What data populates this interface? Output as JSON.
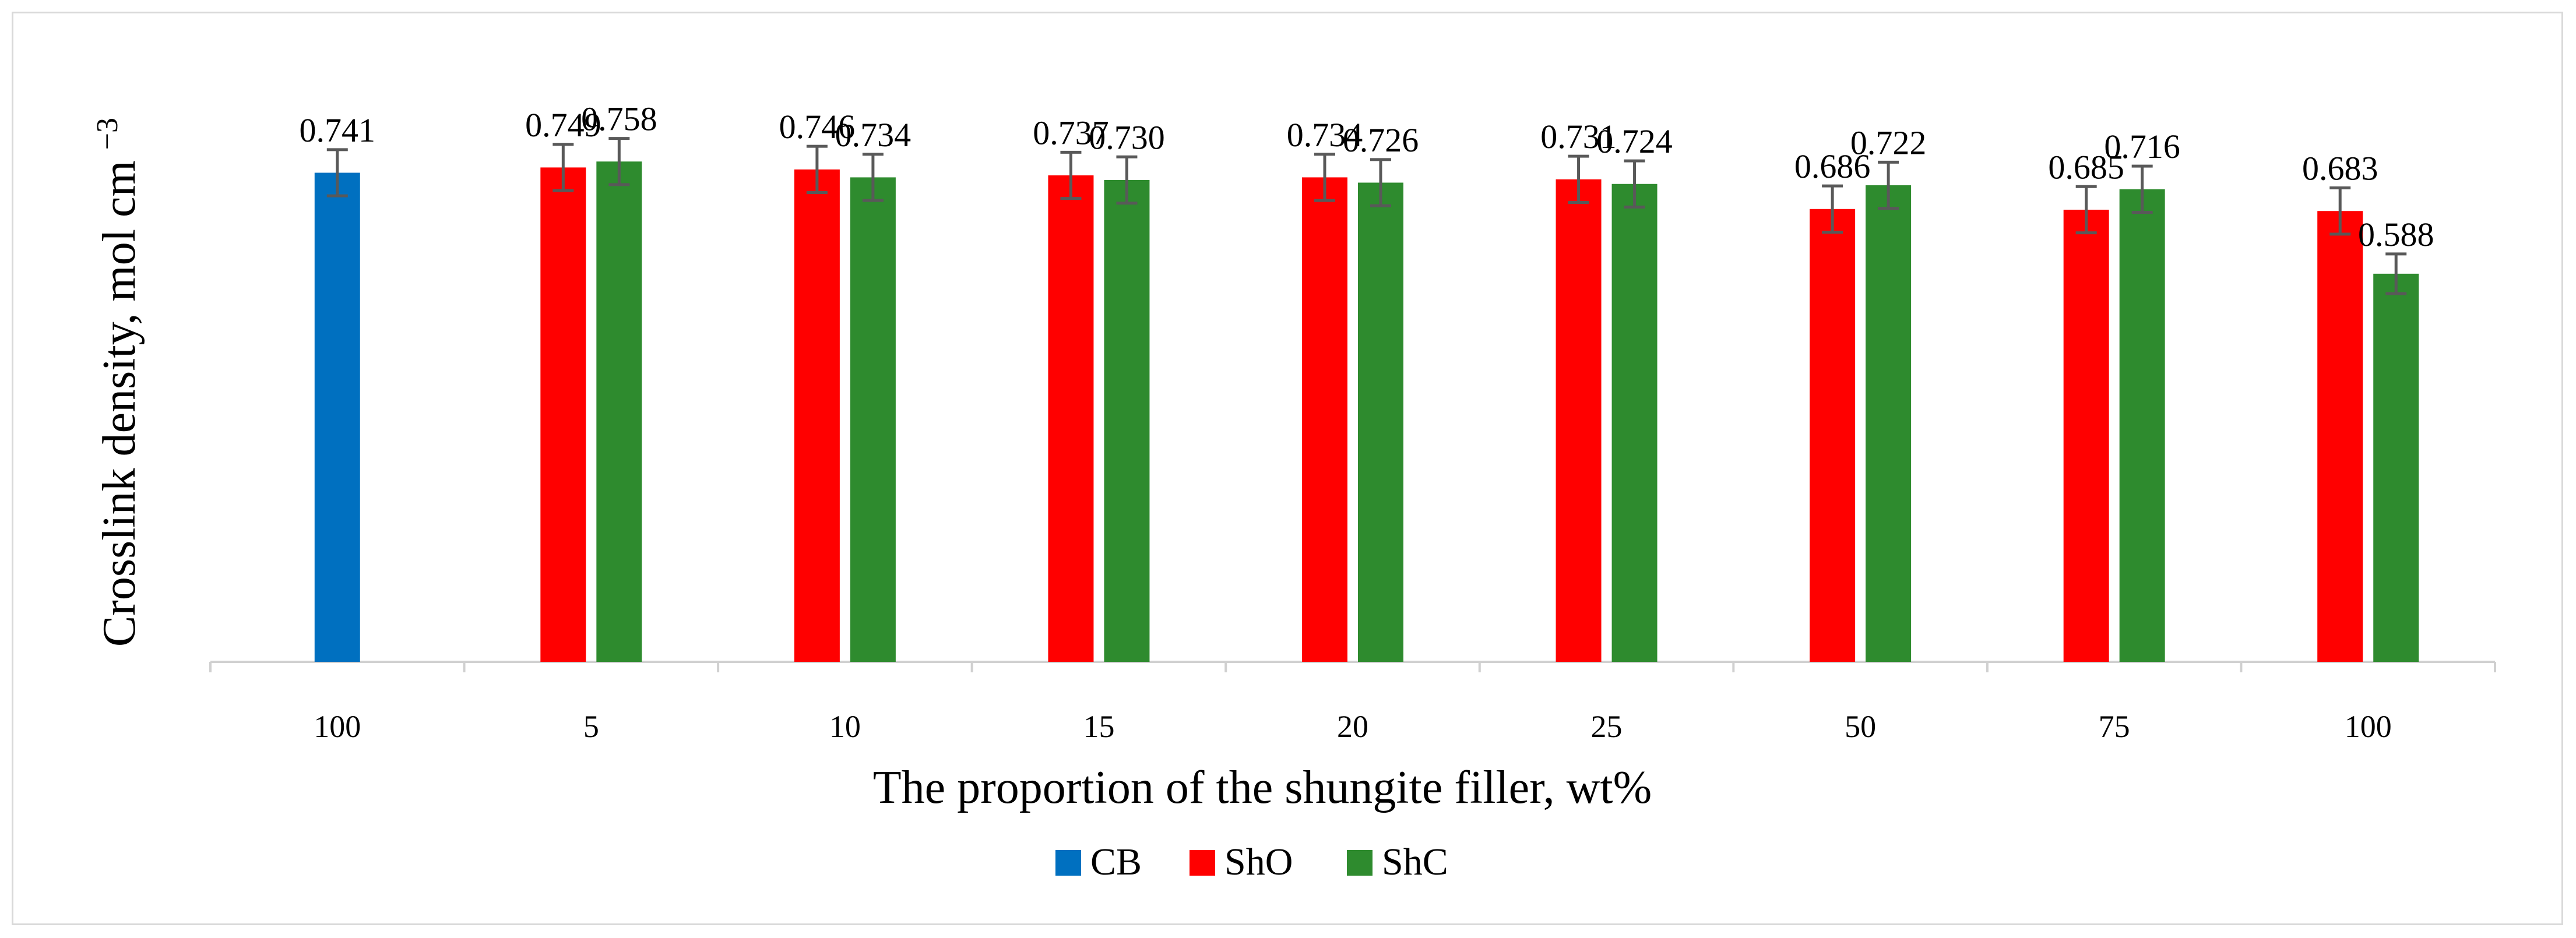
{
  "chart_data": {
    "type": "bar",
    "title": "",
    "xlabel": "The proportion of the shungite filler, wt%",
    "ylabel": "Crosslink density, mol cm",
    "ylabel_superscript": "−3",
    "ylim": [
      0,
      0.85
    ],
    "grid": false,
    "legend_position": "bottom-center",
    "categories": [
      "100",
      "5",
      "10",
      "15",
      "20",
      "25",
      "50",
      "75",
      "100"
    ],
    "series": [
      {
        "name": "CB",
        "color": "#0070c0",
        "values": [
          0.741,
          null,
          null,
          null,
          null,
          null,
          null,
          null,
          null
        ],
        "labels": [
          "0.741",
          null,
          null,
          null,
          null,
          null,
          null,
          null,
          null
        ],
        "errors": [
          0.035,
          null,
          null,
          null,
          null,
          null,
          null,
          null,
          null
        ]
      },
      {
        "name": "ShO",
        "color": "#ff0000",
        "values": [
          null,
          0.749,
          0.746,
          0.737,
          0.734,
          0.731,
          0.686,
          0.685,
          0.683
        ],
        "labels": [
          null,
          "0.749",
          "0.746",
          "0.737",
          "0.734",
          "0.731",
          "0.686",
          "0.685",
          "0.683"
        ],
        "errors": [
          null,
          0.035,
          0.035,
          0.035,
          0.035,
          0.035,
          0.035,
          0.035,
          0.035
        ]
      },
      {
        "name": "ShC",
        "color": "#2e8b2e",
        "values": [
          null,
          0.758,
          0.734,
          0.73,
          0.726,
          0.724,
          0.722,
          0.716,
          0.588
        ],
        "labels": [
          null,
          "0.758",
          "0.734",
          "0.730",
          "0.726",
          "0.724",
          "0.722",
          "0.716",
          "0.588"
        ],
        "errors": [
          null,
          0.035,
          0.035,
          0.035,
          0.035,
          0.035,
          0.035,
          0.035,
          0.03
        ]
      }
    ],
    "error_bar_color": "#595959",
    "axis_color": "#d0d0d0"
  }
}
